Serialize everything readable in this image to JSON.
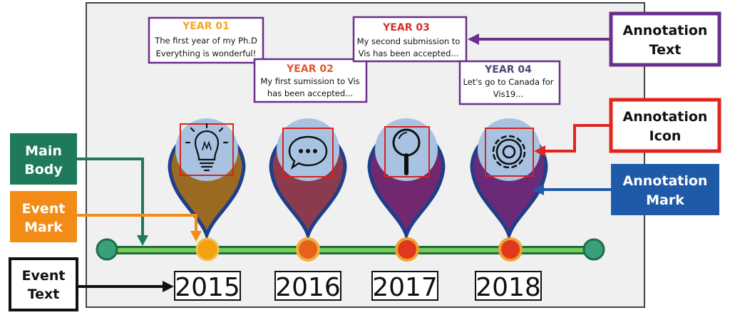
{
  "events": [
    {
      "year": "2015",
      "label": "YEAR 01",
      "label_color": "#f5a623",
      "line1": "The first year of my Ph.D",
      "line2": "Everything is wonderful!",
      "icon": "lightbulb-icon",
      "pin_color": "#a0781e"
    },
    {
      "year": "2016",
      "label": "YEAR 02",
      "label_color": "#e4572e",
      "line1": "My first sumission to Vis",
      "line2": "has been accepted...",
      "icon": "speech-bubble-icon",
      "pin_color": "#8c3a4e"
    },
    {
      "year": "2017",
      "label": "YEAR 03",
      "label_color": "#d0342c",
      "line1": "My second submission to",
      "line2": "Vis has been accepted...",
      "icon": "magnifier-icon",
      "pin_color": "#7a2a6e"
    },
    {
      "year": "2018",
      "label": "YEAR 04",
      "label_color": "#4a4a7a",
      "line1": "Let's go to Canada for",
      "line2": "Vis19...",
      "icon": "gear-icon",
      "pin_color": "#6a2a78"
    }
  ],
  "legend": {
    "main_body": "Main Body",
    "event_mark": "Event Mark",
    "event_text": "Event Text",
    "annotation_text": "Annotation Text",
    "annotation_icon": "Annotation Icon",
    "annotation_mark": "Annotation Mark"
  },
  "colors": {
    "main_body": "#1e7a5a",
    "event_mark": "#f28c16",
    "event_text": "#111111",
    "annotation_text": "#6a2f8c",
    "annotation_icon": "#e0251f",
    "annotation_mark": "#1f5aa8"
  }
}
